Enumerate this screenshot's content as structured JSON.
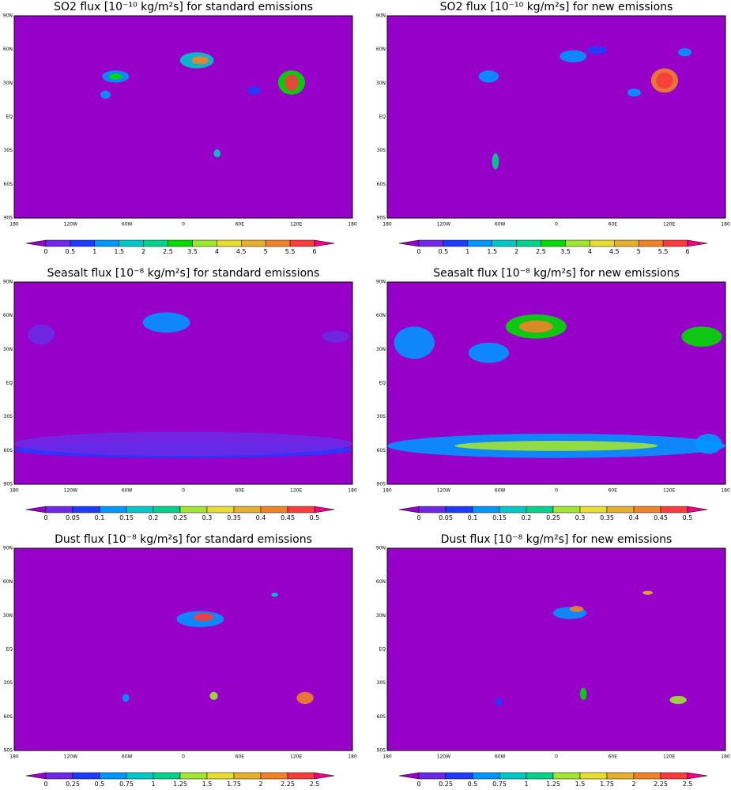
{
  "colorbar_colors": [
    "#9600c8",
    "#6e28e6",
    "#1e3cff",
    "#0096ff",
    "#00c8c8",
    "#00d28c",
    "#00dc00",
    "#a0e632",
    "#e6dc32",
    "#e6af2d",
    "#f08228",
    "#fa3c3c",
    "#f00082"
  ],
  "panels": [
    {
      "title": "SO2 flux [10⁻¹⁰ kg/m²s] for standard emissions",
      "lat_labels": [
        "90N",
        "60N",
        "30N",
        "EQ",
        "30S",
        "60S",
        "90S"
      ],
      "lon_labels": [
        "180",
        "120W",
        "60W",
        "0",
        "60E",
        "120E",
        "180"
      ],
      "colorbar_ticks": [
        0,
        0.5,
        1,
        1.5,
        2,
        2.5,
        3.5,
        4,
        4.5,
        5,
        5.5,
        6
      ]
    },
    {
      "title": "SO2 flux [10⁻¹⁰ kg/m²s] for new emissions",
      "lat_labels": [
        "90N",
        "60N",
        "30N",
        "EQ",
        "30S",
        "60S",
        "90S"
      ],
      "lon_labels": [
        "180",
        "120W",
        "60W",
        "0",
        "60E",
        "120E",
        "180"
      ],
      "colorbar_ticks": [
        0,
        0.5,
        1,
        1.5,
        2,
        2.5,
        3.5,
        4,
        4.5,
        5,
        5.5,
        6
      ]
    },
    {
      "title": "Seasalt flux [10⁻⁸ kg/m²s] for standard emissions",
      "lat_labels": [
        "90N",
        "60N",
        "30N",
        "EQ",
        "30S",
        "60S",
        "90S"
      ],
      "lon_labels": [
        "180",
        "120W",
        "60W",
        "0",
        "60E",
        "120E",
        "180"
      ],
      "colorbar_ticks": [
        0,
        0.05,
        0.1,
        0.15,
        0.2,
        0.25,
        0.3,
        0.35,
        0.4,
        0.45,
        0.5
      ]
    },
    {
      "title": "Seasalt flux [10⁻⁸ kg/m²s] for new emissions",
      "lat_labels": [
        "90N",
        "60N",
        "30N",
        "EQ",
        "30S",
        "60S",
        "90S"
      ],
      "lon_labels": [
        "180",
        "120W",
        "60W",
        "0",
        "60E",
        "120E",
        "180"
      ],
      "colorbar_ticks": [
        0,
        0.05,
        0.1,
        0.15,
        0.2,
        0.25,
        0.3,
        0.35,
        0.4,
        0.45,
        0.5
      ]
    },
    {
      "title": "Dust flux [10⁻⁸ kg/m²s] for standard emissions",
      "lat_labels": [
        "90N",
        "60N",
        "30N",
        "EQ",
        "30S",
        "60S",
        "90S"
      ],
      "lon_labels": [
        "180",
        "120W",
        "60W",
        "0",
        "60E",
        "120E",
        "180"
      ],
      "colorbar_ticks": [
        0,
        0.25,
        0.5,
        0.75,
        1,
        1.25,
        1.5,
        1.75,
        2,
        2.25,
        2.5
      ]
    },
    {
      "title": "Dust flux [10⁻⁸ kg/m²s] for new emissions",
      "lat_labels": [
        "90N",
        "60N",
        "30N",
        "EQ",
        "30S",
        "60S",
        "90S"
      ],
      "lon_labels": [
        "180",
        "120W",
        "60W",
        "0",
        "60E",
        "120E",
        "180"
      ],
      "colorbar_ticks": [
        0,
        0.25,
        0.5,
        0.75,
        1,
        1.25,
        1.5,
        1.75,
        2,
        2.25,
        2.5
      ]
    }
  ]
}
